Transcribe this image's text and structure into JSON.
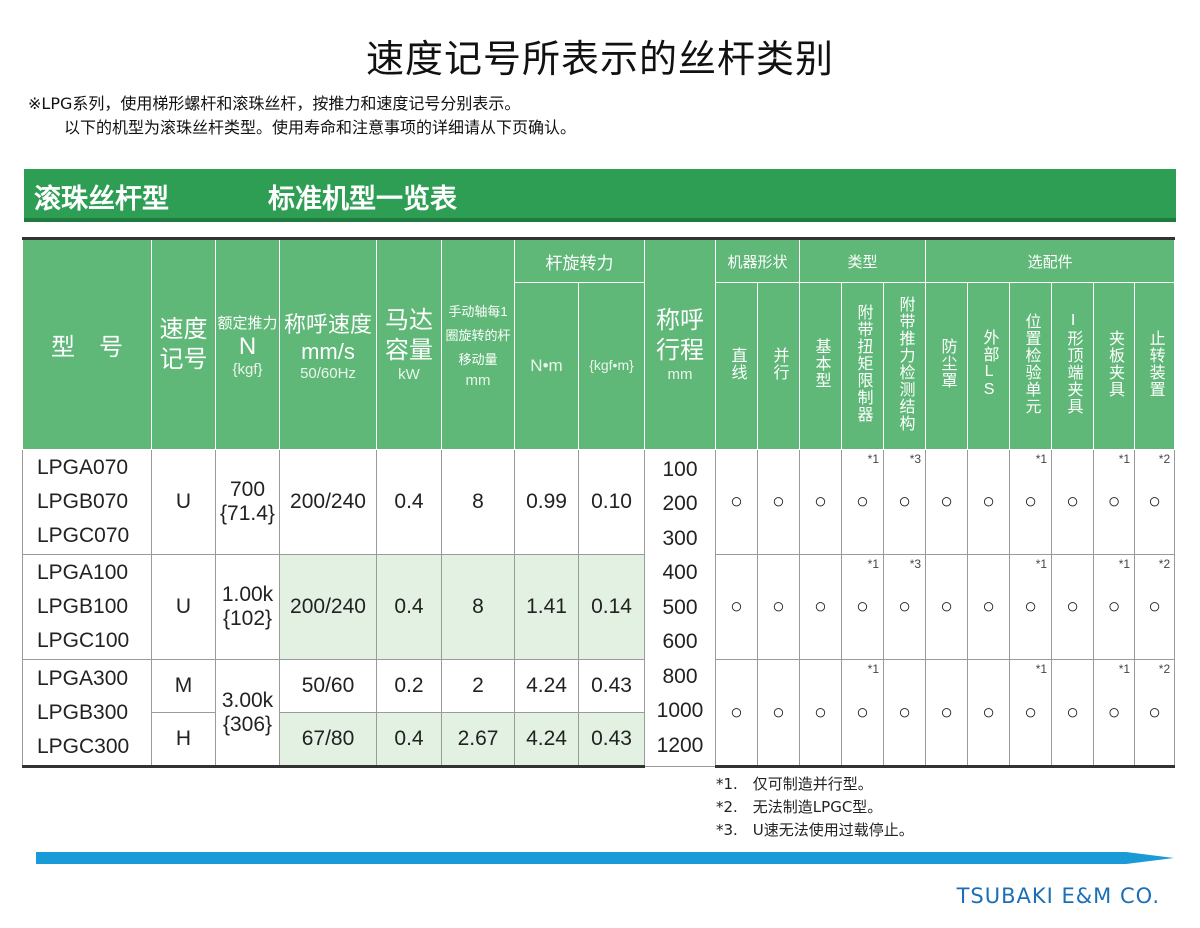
{
  "title": "速度记号所表示的丝杆类别",
  "notes": [
    "※LPG系列，使用梯形螺杆和滚珠丝杆，按推力和速度记号分别表示。",
    "以下的机型为滚珠丝杆类型。使用寿命和注意事项的详细请从下页确认。"
  ],
  "banner": {
    "left": "滚珠丝杆型",
    "right": "标准机型一览表"
  },
  "headers": {
    "model": "型　号",
    "speed_code": "速度记号",
    "thrust": {
      "name": "额定推力",
      "unit": "N",
      "unit2": "{kgf}"
    },
    "speed": {
      "name": "称呼速度",
      "unit": "mm/s",
      "unit2": "50/60Hz"
    },
    "motor": {
      "name": "马达容量",
      "unit": "kW"
    },
    "movement": {
      "name": "手动轴每1圈旋转的杆移动量",
      "unit": "mm"
    },
    "torque": {
      "name": "杆旋转力",
      "unit_nm": "N•m",
      "unit_kgf": "{kgf•m}"
    },
    "stroke": {
      "name": "称呼行程",
      "unit": "mm"
    },
    "shape": {
      "name": "机器形状",
      "straight": "直线",
      "parallel": "并行"
    },
    "type": {
      "name": "类型",
      "basic": "基本型",
      "torque_limiter": "附带扭矩限制器",
      "thrust_detect": "附带推力检测结构"
    },
    "options": {
      "name": "选配件",
      "dust_cover": "防尘罩",
      "external_ls": "外部LS",
      "position_detector": "位置检验单元",
      "i_end": "I形顶端夹具",
      "clevis": "夹板夹具",
      "anti_rotation": "止转装置"
    }
  },
  "groups": [
    {
      "models": [
        "LPGA070",
        "LPGB070",
        "LPGC070"
      ],
      "speed_code": "U",
      "thrust": "700",
      "thrust_kgf": "{71.4}",
      "speed": "200/240",
      "motor": "0.4",
      "movement": "8",
      "torque_nm": "0.99",
      "torque_kgf": "0.10",
      "marks": [
        "",
        "",
        "",
        "*1",
        "*3",
        "",
        "",
        "*1",
        "",
        "*1",
        "*2"
      ]
    },
    {
      "models": [
        "LPGA100",
        "LPGB100",
        "LPGC100"
      ],
      "speed_code": "U",
      "thrust": "1.00k",
      "thrust_kgf": "{102}",
      "speed": "200/240",
      "motor": "0.4",
      "movement": "8",
      "torque_nm": "1.41",
      "torque_kgf": "0.14",
      "marks": [
        "",
        "",
        "",
        "*1",
        "*3",
        "",
        "",
        "*1",
        "",
        "*1",
        "*2"
      ]
    },
    {
      "models": [
        "LPGA300",
        "LPGB300",
        "LPGC300"
      ],
      "thrust": "3.00k",
      "thrust_kgf": "{306}",
      "rows": [
        {
          "speed_code": "M",
          "speed": "50/60",
          "motor": "0.2",
          "movement": "2",
          "torque_nm": "4.24",
          "torque_kgf": "0.43"
        },
        {
          "speed_code": "H",
          "speed": "67/80",
          "motor": "0.4",
          "movement": "2.67",
          "torque_nm": "4.24",
          "torque_kgf": "0.43"
        }
      ],
      "marks": [
        "",
        "",
        "",
        "*1",
        "",
        "",
        "",
        "*1",
        "",
        "*1",
        "*2"
      ]
    }
  ],
  "strokes": [
    "100",
    "200",
    "300",
    "400",
    "500",
    "600",
    "800",
    "1000",
    "1200"
  ],
  "availability_symbol": "○",
  "footnotes": [
    "*1.　仅可制造并行型。",
    "*2.　无法制造LPGC型。",
    "*3.　U速无法使用过载停止。"
  ],
  "footer": "TSUBAKI E&M CO.",
  "colors": {
    "banner": "#2e9e55",
    "header": "#5fb877",
    "shade": "#e3f1e2",
    "bar": "#1a9ad6",
    "footer_text": "#1d6fb5"
  }
}
